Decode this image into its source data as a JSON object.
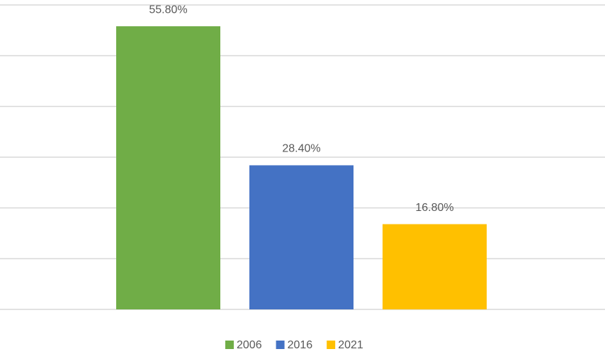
{
  "chart_data": {
    "type": "bar",
    "categories": [
      null
    ],
    "series": [
      {
        "name": "2006",
        "color": "#70ad47",
        "values": [
          55.8
        ],
        "value_labels": [
          "55.80%"
        ]
      },
      {
        "name": "2016",
        "color": "#4472c4",
        "values": [
          28.4
        ],
        "value_labels": [
          "28.40%"
        ]
      },
      {
        "name": "2021",
        "color": "#ffc000",
        "values": [
          16.8
        ],
        "value_labels": [
          "16.80%"
        ]
      }
    ],
    "ylim": [
      0,
      60
    ],
    "yticks": [
      0,
      10,
      20,
      30,
      40,
      50,
      60
    ],
    "grid": true,
    "legend": "bottom"
  }
}
